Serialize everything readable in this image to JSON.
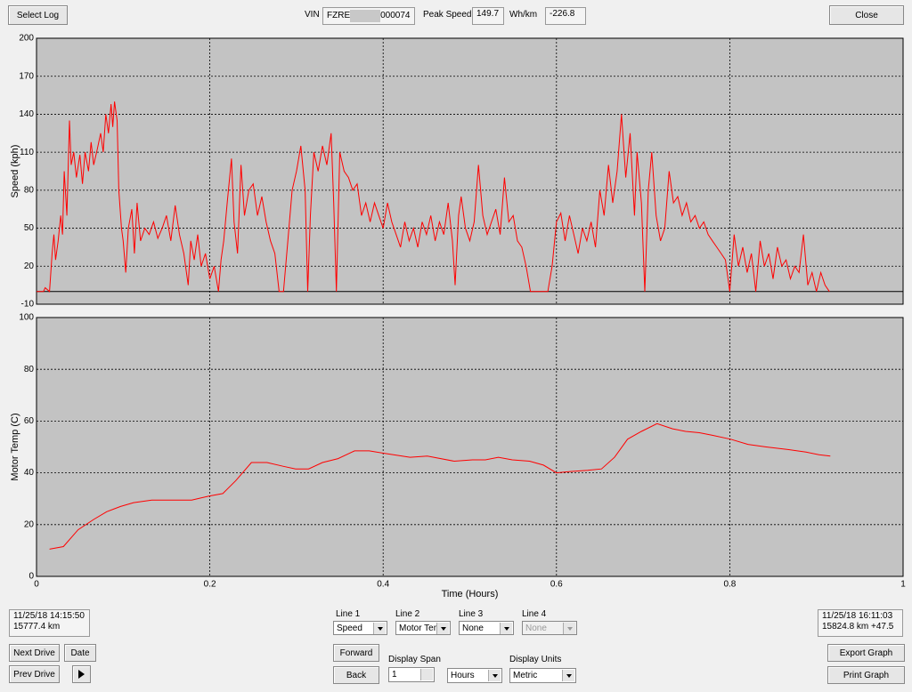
{
  "toolbar": {
    "select_log": "Select Log",
    "vin_label": "VIN",
    "vin_prefix": "FZRE",
    "vin_suffix": "000074",
    "peak_speed_label": "Peak Speed",
    "peak_speed": "149.7",
    "wh_km_label": "Wh/km",
    "wh_km": "-226.8",
    "close": "Close"
  },
  "chart_data": [
    {
      "type": "line",
      "ylabel": "Speed (kph)",
      "color": "#ff0000",
      "ylim": [
        -10,
        200
      ],
      "yticks": [
        -10,
        20,
        50,
        80,
        110,
        140,
        170,
        200
      ],
      "xlim": [
        0,
        1
      ],
      "grid": true,
      "x": [
        0,
        0.008,
        0.01,
        0.015,
        0.018,
        0.02,
        0.022,
        0.025,
        0.028,
        0.03,
        0.032,
        0.035,
        0.038,
        0.04,
        0.043,
        0.046,
        0.05,
        0.053,
        0.056,
        0.06,
        0.063,
        0.066,
        0.07,
        0.074,
        0.077,
        0.08,
        0.083,
        0.086,
        0.088,
        0.09,
        0.093,
        0.095,
        0.098,
        0.1,
        0.103,
        0.106,
        0.11,
        0.113,
        0.116,
        0.12,
        0.125,
        0.13,
        0.135,
        0.14,
        0.145,
        0.15,
        0.155,
        0.16,
        0.165,
        0.17,
        0.175,
        0.178,
        0.182,
        0.186,
        0.19,
        0.195,
        0.2,
        0.205,
        0.21,
        0.213,
        0.216,
        0.22,
        0.225,
        0.228,
        0.232,
        0.236,
        0.24,
        0.245,
        0.25,
        0.255,
        0.26,
        0.265,
        0.27,
        0.275,
        0.28,
        0.285,
        0.29,
        0.295,
        0.3,
        0.305,
        0.31,
        0.313,
        0.316,
        0.32,
        0.325,
        0.33,
        0.335,
        0.34,
        0.343,
        0.346,
        0.35,
        0.355,
        0.36,
        0.365,
        0.37,
        0.375,
        0.38,
        0.385,
        0.39,
        0.395,
        0.4,
        0.405,
        0.41,
        0.415,
        0.42,
        0.425,
        0.43,
        0.435,
        0.44,
        0.445,
        0.45,
        0.455,
        0.46,
        0.465,
        0.47,
        0.475,
        0.48,
        0.483,
        0.487,
        0.49,
        0.495,
        0.5,
        0.505,
        0.51,
        0.515,
        0.52,
        0.525,
        0.53,
        0.535,
        0.54,
        0.545,
        0.55,
        0.555,
        0.56,
        0.565,
        0.57,
        0.58,
        0.59,
        0.595,
        0.6,
        0.605,
        0.61,
        0.615,
        0.62,
        0.625,
        0.63,
        0.635,
        0.64,
        0.645,
        0.65,
        0.655,
        0.66,
        0.665,
        0.67,
        0.675,
        0.68,
        0.685,
        0.69,
        0.693,
        0.698,
        0.702,
        0.706,
        0.71,
        0.715,
        0.72,
        0.725,
        0.73,
        0.735,
        0.74,
        0.745,
        0.75,
        0.755,
        0.76,
        0.765,
        0.77,
        0.775,
        0.78,
        0.785,
        0.79,
        0.795,
        0.8,
        0.805,
        0.81,
        0.815,
        0.82,
        0.825,
        0.83,
        0.835,
        0.84,
        0.845,
        0.85,
        0.855,
        0.86,
        0.865,
        0.87,
        0.875,
        0.88,
        0.885,
        0.89,
        0.895,
        0.9,
        0.905,
        0.91,
        0.915
      ],
      "values": [
        0,
        0,
        3,
        0,
        30,
        45,
        25,
        40,
        60,
        45,
        95,
        60,
        135,
        100,
        110,
        90,
        108,
        85,
        110,
        95,
        118,
        100,
        112,
        125,
        110,
        140,
        125,
        148,
        130,
        150,
        135,
        80,
        50,
        40,
        15,
        50,
        65,
        30,
        70,
        40,
        50,
        45,
        55,
        42,
        50,
        60,
        40,
        68,
        45,
        30,
        5,
        40,
        25,
        45,
        20,
        30,
        10,
        20,
        0,
        25,
        40,
        70,
        105,
        55,
        30,
        100,
        60,
        80,
        85,
        60,
        75,
        55,
        40,
        30,
        0,
        0,
        40,
        80,
        95,
        115,
        80,
        0,
        60,
        110,
        95,
        115,
        100,
        125,
        70,
        0,
        110,
        95,
        90,
        80,
        85,
        60,
        70,
        55,
        70,
        60,
        50,
        70,
        55,
        45,
        35,
        55,
        40,
        50,
        35,
        55,
        45,
        60,
        40,
        55,
        45,
        70,
        40,
        5,
        60,
        75,
        50,
        40,
        55,
        100,
        60,
        45,
        55,
        65,
        45,
        90,
        55,
        60,
        40,
        35,
        20,
        0,
        0,
        0,
        20,
        55,
        62,
        40,
        60,
        45,
        30,
        50,
        40,
        55,
        35,
        80,
        60,
        100,
        70,
        95,
        140,
        90,
        125,
        60,
        110,
        70,
        0,
        80,
        110,
        60,
        40,
        50,
        95,
        70,
        75,
        60,
        70,
        55,
        60,
        50,
        55,
        45,
        40,
        35,
        30,
        25,
        0,
        45,
        20,
        35,
        15,
        30,
        0,
        40,
        20,
        30,
        10,
        35,
        20,
        25,
        10,
        20,
        15,
        45,
        5,
        15,
        0,
        15,
        5,
        0
      ]
    },
    {
      "type": "line",
      "ylabel": "Motor Temp (C)",
      "xlabel": "Time (Hours)",
      "color": "#ff0000",
      "ylim": [
        0,
        100
      ],
      "yticks": [
        0,
        20,
        40,
        60,
        80,
        100
      ],
      "xlim": [
        0,
        1
      ],
      "xticks": [
        0,
        0.2,
        0.4,
        0.6,
        0.8,
        1
      ],
      "grid": true,
      "x": [
        0.015,
        0.031,
        0.048,
        0.066,
        0.081,
        0.097,
        0.112,
        0.133,
        0.158,
        0.179,
        0.199,
        0.215,
        0.23,
        0.248,
        0.266,
        0.285,
        0.299,
        0.314,
        0.33,
        0.348,
        0.367,
        0.384,
        0.402,
        0.431,
        0.451,
        0.482,
        0.503,
        0.518,
        0.533,
        0.549,
        0.569,
        0.585,
        0.6,
        0.616,
        0.636,
        0.652,
        0.667,
        0.682,
        0.698,
        0.716,
        0.734,
        0.749,
        0.765,
        0.78,
        0.801,
        0.821,
        0.842,
        0.867,
        0.888,
        0.903,
        0.916
      ],
      "values": [
        10.5,
        11.5,
        18,
        22,
        25,
        27,
        28.5,
        29.5,
        29.5,
        29.5,
        31,
        32,
        37,
        44,
        44,
        42.5,
        41.5,
        41.5,
        44,
        45.5,
        48.5,
        48.5,
        47.5,
        46,
        46.5,
        44.5,
        45,
        45,
        46,
        45,
        44.5,
        43,
        40,
        40.5,
        41,
        41.5,
        46,
        53,
        56,
        59,
        57,
        56,
        55.5,
        54.5,
        53,
        51,
        50,
        49,
        48,
        47,
        46.5
      ]
    }
  ],
  "footer": {
    "start": {
      "datetime": "11/25/18 14:15:50",
      "odometer": "15777.4 km"
    },
    "end": {
      "datetime": "11/25/18 16:11:03",
      "odometer": "15824.8 km +47.5"
    },
    "next_drive": "Next Drive",
    "date": "Date",
    "prev_drive": "Prev Drive",
    "lines": [
      {
        "label": "Line 1",
        "value": "Speed"
      },
      {
        "label": "Line 2",
        "value": "Motor Tem"
      },
      {
        "label": "Line 3",
        "value": "None"
      },
      {
        "label": "Line 4",
        "value": "None"
      }
    ],
    "forward": "Forward",
    "back": "Back",
    "display_span_label": "Display Span",
    "display_span": "1",
    "span_unit": "Hours",
    "display_units_label": "Display Units",
    "display_units": "Metric",
    "export_graph": "Export Graph",
    "print_graph": "Print Graph"
  }
}
